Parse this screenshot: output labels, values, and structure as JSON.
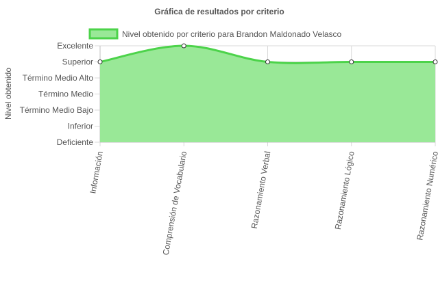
{
  "chart_data": {
    "type": "area",
    "title": "Gráfica de resultados por criterio",
    "ylabel": "Nivel obtenido",
    "xlabel": "",
    "categories": [
      "Información",
      "Comprensión de Vocabulario",
      "Razonamiento Verbal",
      "Razonamiento Lógico",
      "Razonamiento Numérico"
    ],
    "y_levels": [
      "Deficiente",
      "Inferior",
      "Término Medio Bajo",
      "Término Medio",
      "Término Medio Alto",
      "Superior",
      "Excelente"
    ],
    "series": [
      {
        "name": "Nivel obtenido por criterio para Brandon Maldonado Velasco",
        "values": [
          6,
          7,
          6,
          6,
          6
        ],
        "value_labels": [
          "Superior",
          "Excelente",
          "Superior",
          "Superior",
          "Superior"
        ]
      }
    ],
    "ylim": [
      1,
      7
    ],
    "grid": true,
    "legend": "top",
    "colors": {
      "fill": "#99e897",
      "stroke": "#4cd34a",
      "grid": "#d9d9d9",
      "axis": "#bfbfbf",
      "point_fill": "#ffffff",
      "point_stroke": "#333333"
    }
  }
}
